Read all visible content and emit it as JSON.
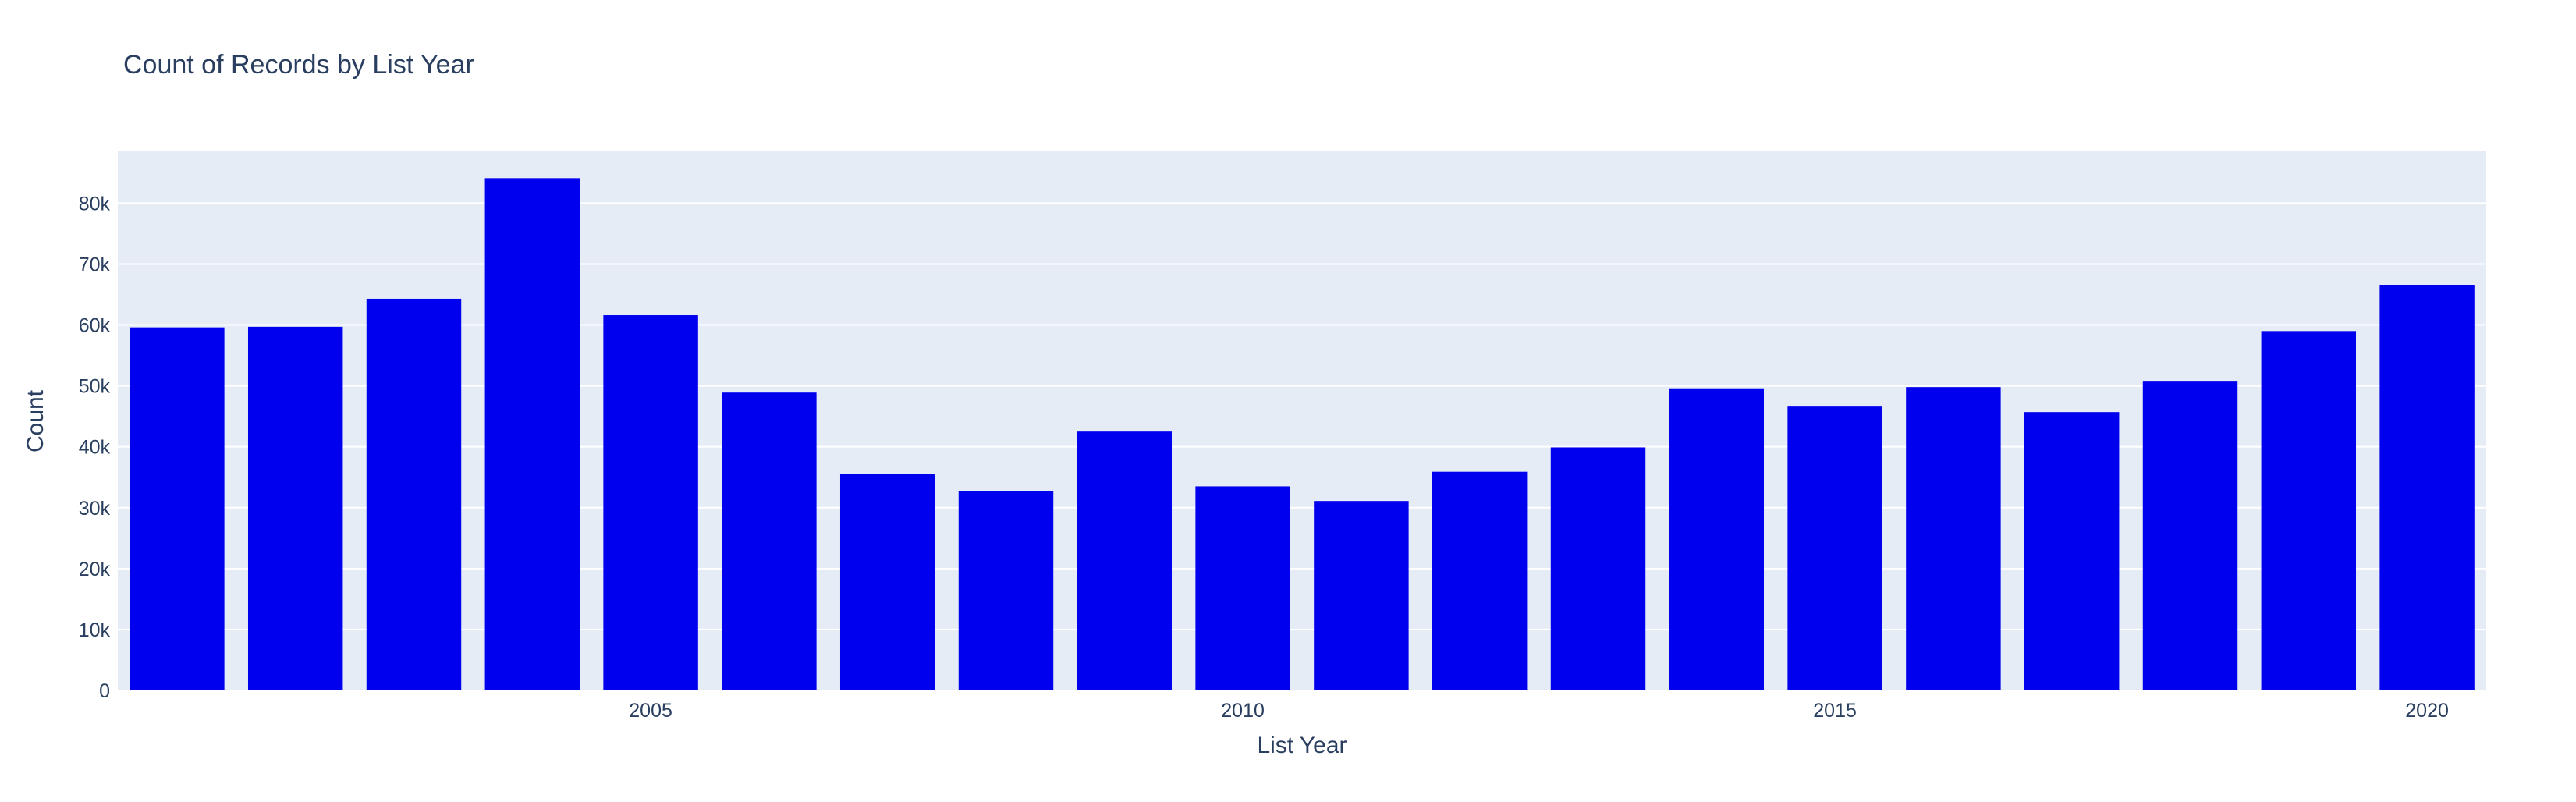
{
  "chart_data": {
    "type": "bar",
    "title": "Count of Records by List Year",
    "xlabel": "List Year",
    "ylabel": "Count",
    "x": [
      2001,
      2002,
      2003,
      2004,
      2005,
      2006,
      2007,
      2008,
      2009,
      2010,
      2011,
      2012,
      2013,
      2014,
      2015,
      2016,
      2017,
      2018,
      2019,
      2020
    ],
    "values": [
      59600,
      59700,
      64300,
      84100,
      61600,
      48900,
      35600,
      32700,
      42500,
      33500,
      31100,
      35900,
      39900,
      49600,
      46600,
      49800,
      45700,
      50700,
      59000,
      66600
    ],
    "ylim": [
      0,
      88500
    ],
    "yticks": [
      0,
      10000,
      20000,
      30000,
      40000,
      50000,
      60000,
      70000,
      80000
    ],
    "ytick_labels": [
      "0",
      "10k",
      "20k",
      "30k",
      "40k",
      "50k",
      "60k",
      "70k",
      "80k"
    ],
    "xticks": [
      2005,
      2010,
      2015,
      2020
    ],
    "xtick_labels": [
      "2005",
      "2010",
      "2015",
      "2020"
    ],
    "grid": true,
    "bar_color": "#0000ee",
    "plot_bg": "#e5ecf6"
  }
}
